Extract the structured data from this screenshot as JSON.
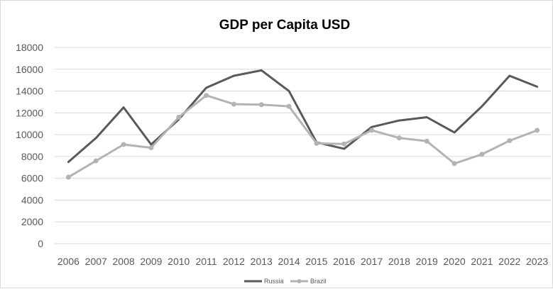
{
  "chart_data": {
    "type": "line",
    "title": "GDP per Capita USD",
    "xlabel": "",
    "ylabel": "",
    "x": [
      "2006",
      "2007",
      "2008",
      "2009",
      "2010",
      "2011",
      "2012",
      "2013",
      "2014",
      "2015",
      "2016",
      "2017",
      "2018",
      "2019",
      "2020",
      "2021",
      "2022",
      "2023"
    ],
    "ylim": [
      0,
      18000
    ],
    "yticks": [
      "0",
      "2000",
      "4000",
      "6000",
      "8000",
      "10000",
      "12000",
      "14000",
      "16000",
      "18000"
    ],
    "grid": true,
    "legend": "bottom",
    "series": [
      {
        "name": "Russia",
        "color": "#595959",
        "values": [
          7500,
          9700,
          12500,
          9100,
          11400,
          14300,
          15400,
          15900,
          14000,
          9300,
          8700,
          10700,
          11300,
          11600,
          10200,
          12600,
          15400,
          14400
        ]
      },
      {
        "name": "Brazil",
        "color": "#b3b3b3",
        "values": [
          6100,
          7600,
          9100,
          8800,
          11600,
          13600,
          12800,
          12750,
          12600,
          9200,
          9150,
          10400,
          9700,
          9400,
          7350,
          8200,
          9450,
          10400
        ]
      }
    ]
  }
}
